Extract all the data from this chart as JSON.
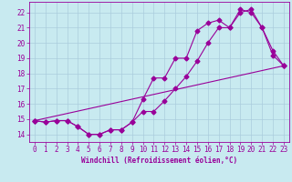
{
  "xlabel": "Windchill (Refroidissement éolien,°C)",
  "bg_color": "#c8eaf0",
  "line_color": "#990099",
  "grid_color": "#aaccdd",
  "xlim": [
    -0.5,
    23.5
  ],
  "ylim": [
    13.5,
    22.7
  ],
  "xticks": [
    0,
    1,
    2,
    3,
    4,
    5,
    6,
    7,
    8,
    9,
    10,
    11,
    12,
    13,
    14,
    15,
    16,
    17,
    18,
    19,
    20,
    21,
    22,
    23
  ],
  "yticks": [
    14,
    15,
    16,
    17,
    18,
    19,
    20,
    21,
    22
  ],
  "line1_x": [
    0,
    1,
    2,
    3,
    4,
    5,
    6,
    7,
    8,
    9,
    10,
    11,
    12,
    13,
    14,
    15,
    16,
    17,
    18,
    19,
    20,
    21,
    22,
    23
  ],
  "line1_y": [
    14.9,
    14.8,
    14.9,
    14.9,
    14.5,
    14.0,
    14.0,
    14.3,
    14.3,
    14.8,
    16.3,
    17.7,
    17.7,
    19.0,
    19.0,
    20.8,
    21.3,
    21.5,
    21.0,
    22.0,
    22.2,
    21.0,
    19.5,
    18.5
  ],
  "line2_x": [
    0,
    1,
    2,
    3,
    4,
    5,
    6,
    7,
    8,
    9,
    10,
    11,
    12,
    13,
    14,
    15,
    16,
    17,
    18,
    19,
    20,
    21,
    22,
    23
  ],
  "line2_y": [
    14.9,
    14.8,
    14.9,
    14.9,
    14.5,
    14.0,
    14.0,
    14.3,
    14.3,
    14.8,
    15.5,
    15.5,
    16.2,
    17.0,
    17.8,
    18.8,
    20.0,
    21.0,
    21.0,
    22.2,
    22.0,
    21.0,
    19.2,
    18.5
  ],
  "line3_x": [
    0,
    23
  ],
  "line3_y": [
    14.9,
    18.5
  ],
  "marker": "D",
  "markersize": 2.5,
  "lw": 0.8,
  "tick_fontsize": 5.5,
  "xlabel_fontsize": 5.5
}
